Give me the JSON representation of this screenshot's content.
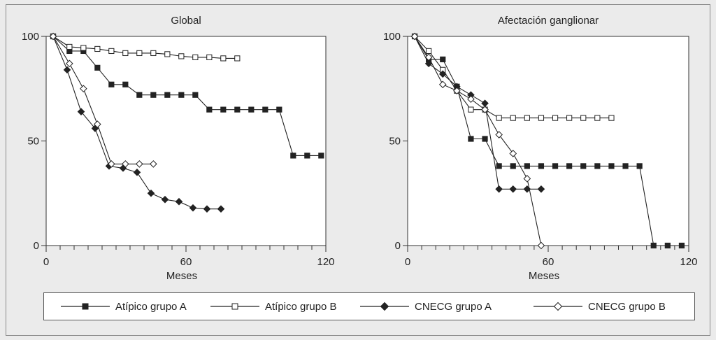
{
  "chart_data": [
    {
      "type": "line",
      "title": "Global",
      "xlabel": "Meses",
      "ylabel": "",
      "xlim": [
        0,
        120
      ],
      "ylim": [
        0,
        100
      ],
      "xticks": [
        0,
        60,
        120
      ],
      "yticks": [
        0,
        50,
        100
      ],
      "grid": false,
      "series": [
        {
          "name": "Atípico grupo A",
          "marker": "filled-square",
          "x": [
            3,
            10,
            16,
            22,
            28,
            34,
            40,
            46,
            52,
            58,
            64,
            70,
            76,
            82,
            88,
            94,
            100,
            106,
            112,
            118
          ],
          "y": [
            100,
            93,
            93,
            85,
            77,
            77,
            72,
            72,
            72,
            72,
            72,
            65,
            65,
            65,
            65,
            65,
            65,
            43,
            43,
            43
          ]
        },
        {
          "name": "Atípico grupo B",
          "marker": "open-square",
          "x": [
            3,
            10,
            16,
            22,
            28,
            34,
            40,
            46,
            52,
            58,
            64,
            70,
            76,
            82
          ],
          "y": [
            100,
            95,
            94.5,
            94,
            93,
            92,
            92,
            92,
            91.5,
            90.5,
            90,
            90,
            89.5,
            89.5
          ]
        },
        {
          "name": "CNECG grupo A",
          "marker": "filled-diamond",
          "x": [
            3,
            9,
            15,
            21,
            27,
            33,
            39,
            45,
            51,
            57,
            63,
            69,
            75
          ],
          "y": [
            100,
            84,
            64,
            56,
            38,
            37,
            35,
            25,
            22,
            21,
            18,
            17.5,
            17.5
          ]
        },
        {
          "name": "CNECG grupo B",
          "marker": "open-diamond",
          "x": [
            3,
            10,
            16,
            22,
            28,
            34,
            40,
            46
          ],
          "y": [
            100,
            87,
            75,
            58,
            39,
            39,
            39,
            39
          ]
        }
      ]
    },
    {
      "type": "line",
      "title": "Afectación ganglionar",
      "xlabel": "Meses",
      "ylabel": "",
      "xlim": [
        0,
        120
      ],
      "ylim": [
        0,
        100
      ],
      "xticks": [
        0,
        60,
        120
      ],
      "yticks": [
        0,
        50,
        100
      ],
      "grid": false,
      "series": [
        {
          "name": "Atípico grupo A",
          "marker": "filled-square",
          "x": [
            3,
            9,
            15,
            21,
            27,
            33,
            39,
            45,
            51,
            57,
            63,
            69,
            75,
            81,
            87,
            93,
            99,
            105,
            111,
            117
          ],
          "y": [
            100,
            89,
            89,
            76,
            51,
            51,
            38,
            38,
            38,
            38,
            38,
            38,
            38,
            38,
            38,
            38,
            38,
            0,
            0,
            0
          ]
        },
        {
          "name": "Atípico grupo B",
          "marker": "open-square",
          "x": [
            3,
            9,
            15,
            21,
            27,
            33,
            39,
            45,
            51,
            57,
            63,
            69,
            75,
            81,
            87
          ],
          "y": [
            100,
            93,
            84,
            74,
            65,
            65,
            61,
            61,
            61,
            61,
            61,
            61,
            61,
            61,
            61
          ]
        },
        {
          "name": "CNECG grupo A",
          "marker": "filled-diamond",
          "x": [
            3,
            9,
            15,
            21,
            27,
            33,
            39,
            45,
            51,
            57
          ],
          "y": [
            100,
            87,
            82,
            76,
            72,
            68,
            27,
            27,
            27,
            27
          ]
        },
        {
          "name": "CNECG grupo B",
          "marker": "open-diamond",
          "x": [
            3,
            9,
            15,
            21,
            27,
            33,
            39,
            45,
            51,
            57
          ],
          "y": [
            100,
            90,
            77,
            74,
            70,
            65,
            53,
            44,
            32,
            0
          ]
        }
      ]
    }
  ],
  "legend": {
    "position": "bottom",
    "items": [
      {
        "label": "Atípico grupo A",
        "marker": "filled-square"
      },
      {
        "label": "Atípico grupo B",
        "marker": "open-square"
      },
      {
        "label": "CNECG grupo A",
        "marker": "filled-diamond"
      },
      {
        "label": "CNECG grupo B",
        "marker": "open-diamond"
      }
    ]
  },
  "colors": {
    "line": "#222222",
    "plot_bg": "#ffffff",
    "figure_bg": "#ebebeb"
  }
}
